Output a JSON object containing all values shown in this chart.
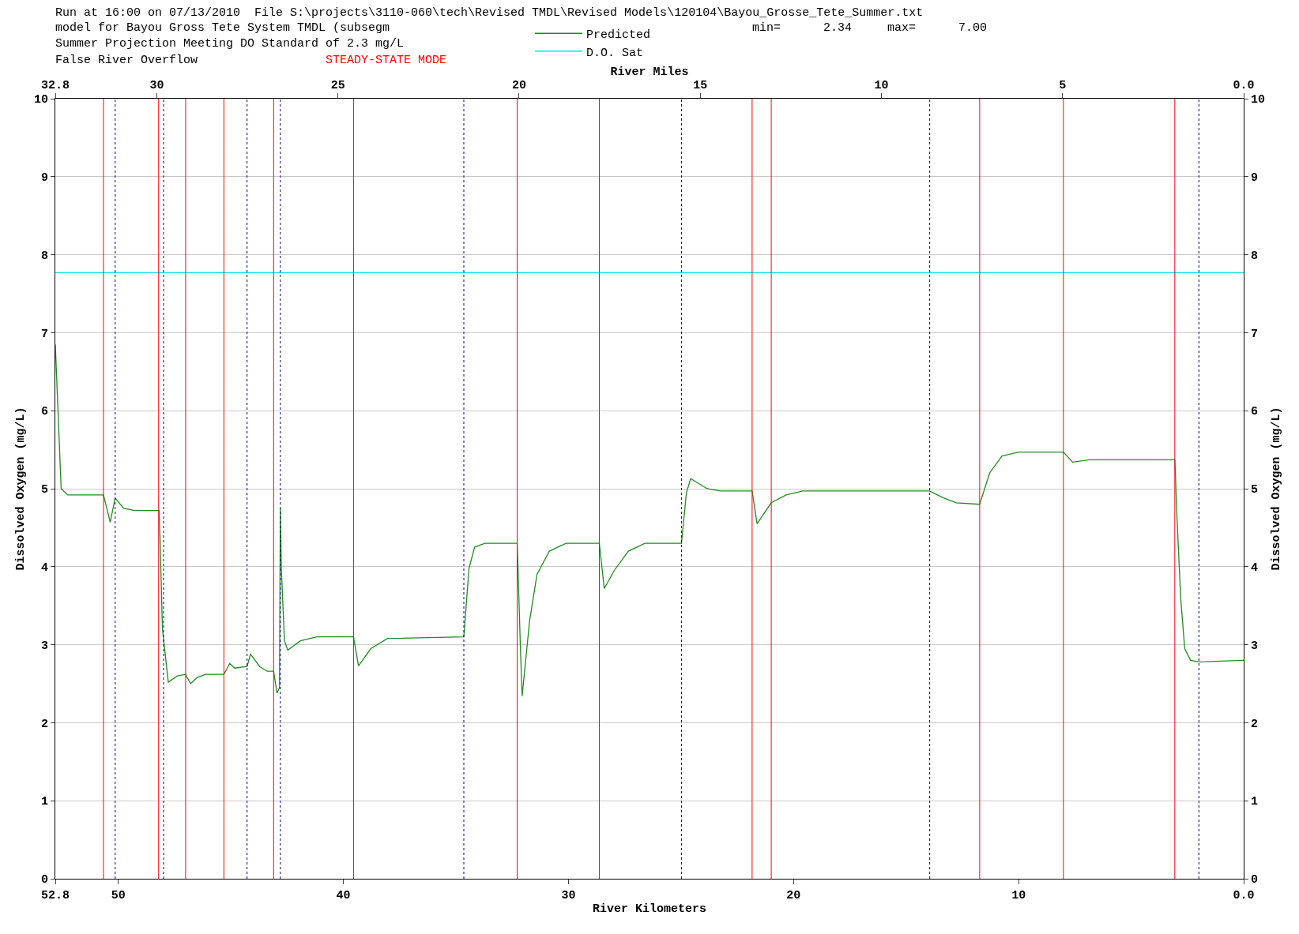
{
  "chart_data": {
    "type": "line",
    "annotations": [
      "Run at 16:00 on 07/13/2010  File S:\\projects\\3110-060\\tech\\Revised TMDL\\Revised Models\\120104\\Bayou_Grosse_Tete_Summer.txt",
      "model for Bayou Gross Tete System TMDL (subsegm",
      "Summer Projection Meeting DO Standard of 2.3 mg/L",
      "False River Overflow",
      "STEADY-STATE MODE",
      "min=      2.34     max=      7.00"
    ],
    "xlabel": "River Kilometers",
    "x2label": "River Miles",
    "ylabel": "Dissolved Oxygen (mg/L)",
    "y2label": "Dissolved Oxygen (mg/L)",
    "xlim": [
      52.8,
      0
    ],
    "xticks": [
      52.8,
      50,
      40,
      30,
      20,
      10,
      {
        "value": 0,
        "label": "0.0"
      }
    ],
    "x2lim": [
      32.8,
      0
    ],
    "x2ticks": [
      32.8,
      30,
      25,
      20,
      15,
      10,
      5,
      {
        "value": 0,
        "label": "0.0"
      }
    ],
    "ylim": [
      0,
      10
    ],
    "yticks": [
      0,
      1,
      2,
      3,
      4,
      5,
      6,
      7,
      8,
      9,
      10
    ],
    "y2lim": [
      0,
      10
    ],
    "y2ticks": [
      0,
      1,
      2,
      3,
      4,
      5,
      6,
      7,
      8,
      9,
      10
    ],
    "grid": "y",
    "legend": "top",
    "marker": "none",
    "line_style": "solid",
    "series": [
      {
        "name": "Predicted",
        "color": "#1e8c1e",
        "x": [
          52.8,
          52.54,
          52.25,
          50.66,
          50.36,
          50.14,
          49.77,
          49.29,
          48.19,
          48.15,
          48.04,
          47.78,
          47.38,
          47.01,
          46.79,
          46.49,
          46.12,
          45.31,
          45.05,
          44.83,
          44.28,
          44.13,
          43.72,
          43.39,
          43.1,
          42.95,
          42.84,
          42.8,
          42.76,
          42.62,
          42.47,
          41.91,
          41.18,
          39.55,
          39.33,
          38.78,
          38.04,
          34.65,
          34.42,
          34.17,
          33.72,
          32.28,
          32.25,
          32.14,
          32.06,
          31.73,
          31.4,
          30.85,
          30.11,
          28.63,
          28.41,
          27.97,
          27.34,
          26.6,
          24.98,
          24.76,
          24.57,
          23.84,
          23.25,
          21.84,
          21.62,
          20.99,
          20.33,
          19.59,
          13.95,
          13.32,
          12.77,
          11.73,
          11.29,
          10.74,
          10.0,
          8.01,
          7.6,
          6.86,
          3.06,
          3.03,
          2.99,
          2.8,
          2.62,
          2.36,
          1.99,
          0
        ],
        "values": [
          6.85,
          5.0,
          4.92,
          4.92,
          4.57,
          4.88,
          4.75,
          4.72,
          4.72,
          4.4,
          3.2,
          2.52,
          2.6,
          2.62,
          2.5,
          2.58,
          2.62,
          2.62,
          2.76,
          2.7,
          2.72,
          2.88,
          2.72,
          2.66,
          2.66,
          2.38,
          2.45,
          4.75,
          4.0,
          3.05,
          2.93,
          3.05,
          3.1,
          3.1,
          2.73,
          2.95,
          3.08,
          3.1,
          3.98,
          4.25,
          4.3,
          4.3,
          4.05,
          3.0,
          2.34,
          3.3,
          3.9,
          4.2,
          4.3,
          4.3,
          3.72,
          3.95,
          4.2,
          4.3,
          4.3,
          4.95,
          5.13,
          5.0,
          4.97,
          4.97,
          4.55,
          4.82,
          4.92,
          4.97,
          4.97,
          4.88,
          4.82,
          4.8,
          5.2,
          5.42,
          5.47,
          5.47,
          5.34,
          5.37,
          5.37,
          5.18,
          4.8,
          3.6,
          2.95,
          2.8,
          2.78,
          2.8
        ]
      },
      {
        "name": "D.O. Sat",
        "color": "#00e5e5",
        "x": [
          52.8,
          0
        ],
        "values": [
          7.77,
          7.77
        ]
      }
    ],
    "ref_lines": [
      {
        "axis": "x",
        "value": 50.66,
        "color": "#ff0000",
        "line_style": "solid"
      },
      {
        "axis": "x",
        "value": 48.21,
        "color": "#ff0000",
        "line_style": "solid"
      },
      {
        "axis": "x",
        "value": 47.01,
        "color": "#ff0000",
        "line_style": "solid"
      },
      {
        "axis": "x",
        "value": 45.31,
        "color": "#ff0000",
        "line_style": "solid"
      },
      {
        "axis": "x",
        "value": 43.1,
        "color": "#ff0000",
        "line_style": "solid"
      },
      {
        "axis": "x",
        "value": 39.55,
        "color": "#ff0000",
        "line_style": "solid"
      },
      {
        "axis": "x",
        "value": 32.28,
        "color": "#ff0000",
        "line_style": "solid"
      },
      {
        "axis": "x",
        "value": 28.63,
        "color": "#ff0000",
        "line_style": "solid"
      },
      {
        "axis": "x",
        "value": 21.84,
        "color": "#ff0000",
        "line_style": "solid"
      },
      {
        "axis": "x",
        "value": 20.99,
        "color": "#ff0000",
        "line_style": "solid"
      },
      {
        "axis": "x",
        "value": 11.73,
        "color": "#ff0000",
        "line_style": "solid"
      },
      {
        "axis": "x",
        "value": 8.01,
        "color": "#ff0000",
        "line_style": "solid"
      },
      {
        "axis": "x",
        "value": 3.06,
        "color": "#ff0000",
        "line_style": "solid"
      },
      {
        "axis": "x",
        "value": 50.14,
        "color": "#000080",
        "line_style": "dotted"
      },
      {
        "axis": "x",
        "value": 47.99,
        "color": "#000080",
        "line_style": "dotted"
      },
      {
        "axis": "x",
        "value": 44.28,
        "color": "#000080",
        "line_style": "dotted"
      },
      {
        "axis": "x",
        "value": 42.8,
        "color": "#000080",
        "line_style": "dotted"
      },
      {
        "axis": "x",
        "value": 34.65,
        "color": "#000080",
        "line_style": "dotted"
      },
      {
        "axis": "x",
        "value": 24.98,
        "color": "#000080",
        "line_style": "dotted"
      },
      {
        "axis": "x",
        "value": 13.95,
        "color": "#000080",
        "line_style": "dotted"
      },
      {
        "axis": "x",
        "value": 1.99,
        "color": "#000080",
        "line_style": "dotted"
      }
    ]
  }
}
